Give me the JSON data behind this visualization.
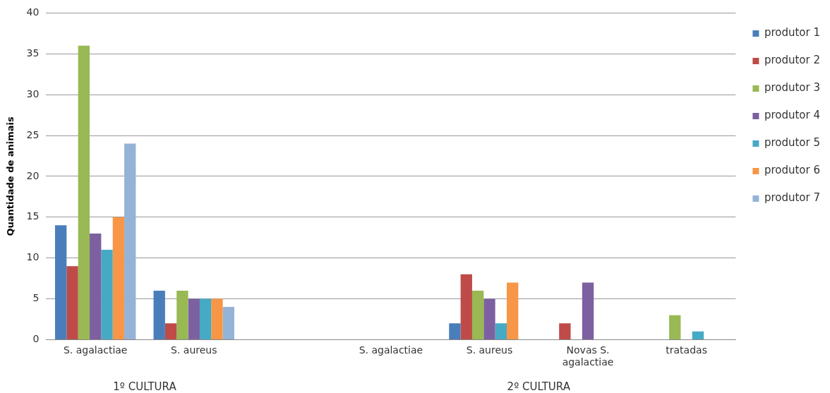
{
  "chart_data": {
    "type": "bar",
    "ylabel": "Quantidade de animais",
    "categories": [
      "S. agalactiae",
      "S. aureus",
      null,
      "S. agalactiae",
      "S. aureus",
      "Novas S. agalactiae",
      "tratadas"
    ],
    "series": [
      {
        "name": "produtor 1",
        "color": "#4a7ebb",
        "values": [
          14,
          6,
          null,
          0,
          2,
          0,
          0
        ]
      },
      {
        "name": "produtor 2",
        "color": "#be4b48",
        "values": [
          9,
          2,
          null,
          0,
          8,
          2,
          0
        ]
      },
      {
        "name": "produtor 3",
        "color": "#98b954",
        "values": [
          36,
          6,
          null,
          0,
          6,
          0,
          3
        ]
      },
      {
        "name": "produtor 4",
        "color": "#7d60a0",
        "values": [
          13,
          5,
          null,
          0,
          5,
          7,
          0
        ]
      },
      {
        "name": "produtor 5",
        "color": "#46aac5",
        "values": [
          11,
          5,
          null,
          0,
          2,
          0,
          1
        ]
      },
      {
        "name": "produtor 6",
        "color": "#f79646",
        "values": [
          15,
          5,
          null,
          0,
          7,
          0,
          0
        ]
      },
      {
        "name": "produtor 7",
        "color": "#95b3d7",
        "values": [
          24,
          4,
          null,
          0,
          0,
          0,
          0
        ]
      }
    ],
    "ylim": [
      0,
      40
    ],
    "yticks": [
      0,
      5,
      10,
      15,
      20,
      25,
      30,
      35,
      40
    ],
    "grid": "y",
    "legend": "right",
    "annotations": [
      "1º CULTURA",
      "2º CULTURA"
    ]
  }
}
